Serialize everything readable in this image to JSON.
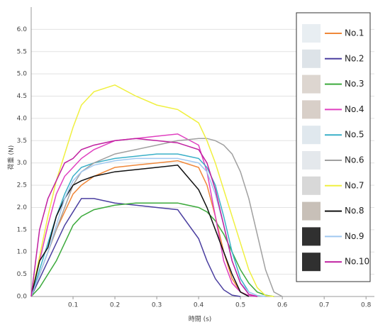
{
  "chart_data": {
    "type": "line",
    "x_label": "時間 (s)",
    "y_label": "荷重 (N)",
    "x": [
      0,
      0.02,
      0.04,
      0.06,
      0.08,
      0.1,
      0.12,
      0.15,
      0.2,
      0.25,
      0.3,
      0.35,
      0.4,
      0.42,
      0.44,
      0.46,
      0.48,
      0.5,
      0.52,
      0.54,
      0.56,
      0.58,
      0.6
    ],
    "xlim": [
      0,
      0.82
    ],
    "ylim": [
      0,
      6.5
    ],
    "xticks": [
      0.1,
      0.2,
      0.3,
      0.4,
      0.5,
      0.6,
      0.7,
      0.8
    ],
    "yticks": [
      {
        "value": 0,
        "label": "0.0"
      },
      0.5,
      {
        "value": 1,
        "label": "1.0"
      },
      1.5,
      {
        "value": 2,
        "label": "2.0"
      },
      2.5,
      {
        "value": 3,
        "label": "3.0"
      },
      3.5,
      {
        "value": 4,
        "label": "4.0"
      },
      4.5,
      {
        "value": 5,
        "label": "5.0"
      },
      5.5,
      {
        "value": 6,
        "label": "6.0"
      }
    ],
    "grid": true,
    "legend": "right",
    "series": [
      {
        "name": "No.1",
        "color": "#f0883a",
        "values": [
          0,
          0.5,
          1.0,
          1.5,
          1.9,
          2.3,
          2.5,
          2.7,
          2.9,
          2.95,
          3.0,
          3.05,
          2.9,
          2.5,
          1.8,
          1.0,
          0.4,
          0.1,
          0.02,
          null,
          null,
          null,
          null
        ]
      },
      {
        "name": "No.2",
        "color": "#4b3fa0",
        "values": [
          0,
          0.4,
          0.8,
          1.2,
          1.6,
          1.9,
          2.2,
          2.2,
          2.1,
          2.05,
          2.0,
          1.95,
          1.3,
          0.8,
          0.4,
          0.15,
          0.03,
          0,
          null,
          null,
          null,
          null,
          null
        ]
      },
      {
        "name": "No.3",
        "color": "#3caa3c",
        "values": [
          0,
          0.2,
          0.5,
          0.8,
          1.2,
          1.6,
          1.8,
          1.95,
          2.05,
          2.1,
          2.1,
          2.1,
          2.0,
          1.9,
          1.7,
          1.4,
          1.0,
          0.6,
          0.3,
          0.1,
          0.03,
          0,
          null
        ]
      },
      {
        "name": "No.4",
        "color": "#e040c0",
        "values": [
          0,
          0.8,
          1.6,
          2.3,
          2.7,
          2.9,
          3.1,
          3.3,
          3.5,
          3.55,
          3.6,
          3.65,
          3.4,
          2.8,
          1.8,
          0.8,
          0.3,
          0.1,
          0.02,
          0,
          null,
          null,
          null
        ]
      },
      {
        "name": "No.5",
        "color": "#3ab0c8",
        "values": [
          0,
          0.6,
          1.2,
          1.8,
          2.3,
          2.7,
          2.9,
          3.0,
          3.1,
          3.15,
          3.2,
          3.2,
          3.1,
          2.9,
          2.5,
          1.8,
          1.0,
          0.4,
          0.1,
          0.02,
          0,
          null,
          null
        ]
      },
      {
        "name": "No.6",
        "color": "#a0a0a0",
        "values": [
          0,
          0.5,
          1.0,
          1.5,
          2.0,
          2.5,
          2.8,
          3.0,
          3.2,
          3.3,
          3.4,
          3.5,
          3.55,
          3.55,
          3.5,
          3.4,
          3.2,
          2.8,
          2.2,
          1.4,
          0.6,
          0.1,
          0
        ]
      },
      {
        "name": "No.7",
        "color": "#f0f040",
        "values": [
          0,
          0.9,
          1.8,
          2.6,
          3.2,
          3.8,
          4.3,
          4.6,
          4.75,
          4.5,
          4.3,
          4.2,
          3.9,
          3.5,
          3.0,
          2.4,
          1.8,
          1.2,
          0.6,
          0.2,
          0.02,
          0,
          null
        ]
      },
      {
        "name": "No.8",
        "color": "#111111",
        "values": [
          0,
          0.8,
          1.1,
          1.8,
          2.2,
          2.5,
          2.6,
          2.7,
          2.8,
          2.85,
          2.9,
          2.95,
          2.4,
          2.0,
          1.5,
          1.0,
          0.5,
          0.1,
          0,
          null,
          null,
          null,
          null
        ]
      },
      {
        "name": "No.9",
        "color": "#a0c8f0",
        "values": [
          0,
          0.5,
          1.0,
          1.6,
          2.2,
          2.6,
          2.8,
          2.95,
          3.05,
          3.1,
          3.1,
          3.1,
          3.0,
          2.8,
          2.3,
          1.6,
          0.8,
          0.3,
          0.1,
          0.02,
          0,
          null,
          null
        ]
      },
      {
        "name": "No.10",
        "color": "#c020a0",
        "values": [
          0,
          1.5,
          2.2,
          2.6,
          3.0,
          3.1,
          3.3,
          3.4,
          3.5,
          3.55,
          3.5,
          3.45,
          3.3,
          3.0,
          2.4,
          1.6,
          0.8,
          0.3,
          0.05,
          0,
          null,
          null,
          null
        ]
      }
    ]
  }
}
